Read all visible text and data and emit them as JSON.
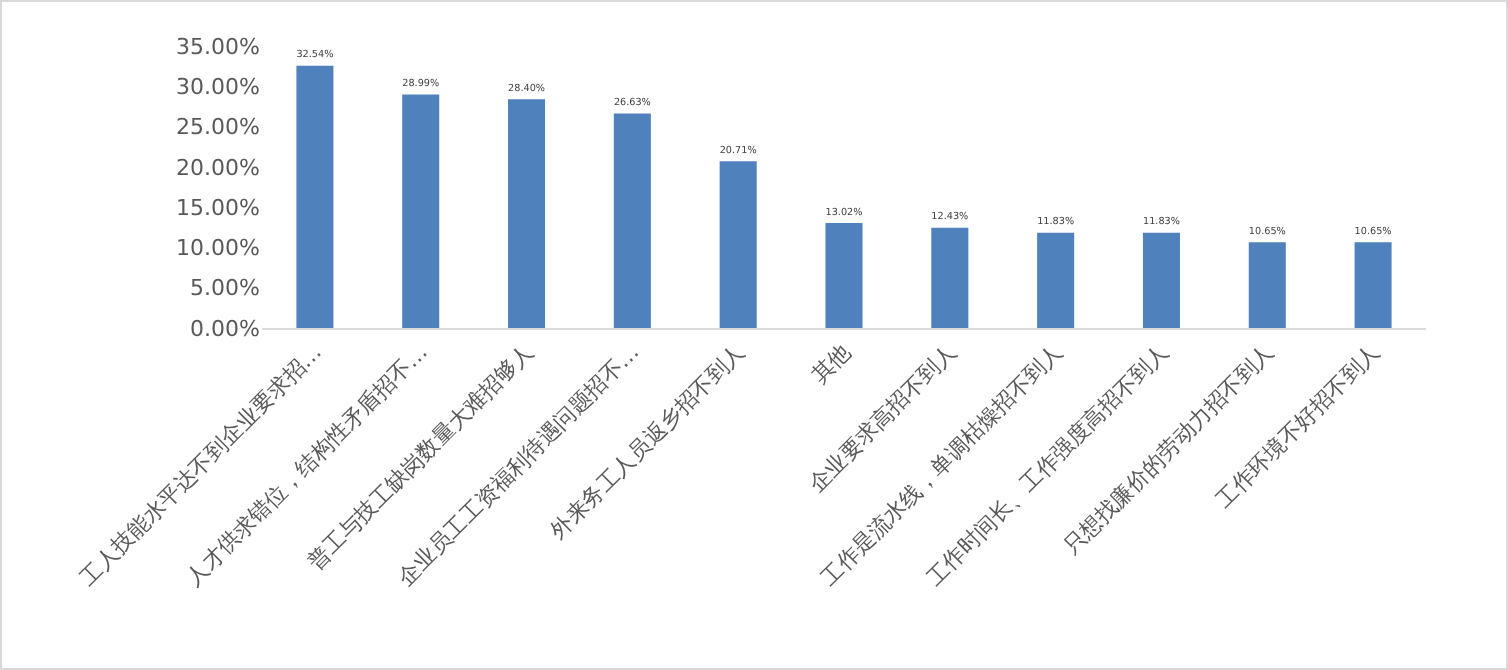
{
  "chart_data": {
    "type": "bar",
    "categories": [
      "工人技能水平达不到企业要求招…",
      "人才供求错位，结构性矛盾招不…",
      "普工与技工缺岗数量大难招够人",
      "企业员工工资福利待遇问题招不…",
      "外来务工人员返乡招不到人",
      "其他",
      "企业要求高招不到人",
      "工作是流水线，单调枯燥招不到人",
      "工作时间长、工作强度高招不到人",
      "只想找廉价的劳动力招不到人",
      "工作环境不好招不到人"
    ],
    "values": [
      32.54,
      28.99,
      28.4,
      26.63,
      20.71,
      13.02,
      12.43,
      11.83,
      11.83,
      10.65,
      10.65
    ],
    "value_labels": [
      "32.54%",
      "28.99%",
      "28.40%",
      "26.63%",
      "20.71%",
      "13.02%",
      "12.43%",
      "11.83%",
      "11.83%",
      "10.65%",
      "10.65%"
    ],
    "color": "#4f81bd",
    "ylim": [
      0,
      35
    ],
    "yticks": [
      {
        "value": 0,
        "label": "0.00%"
      },
      {
        "value": 5,
        "label": "5.00%"
      },
      {
        "value": 10,
        "label": "10.00%"
      },
      {
        "value": 15,
        "label": "15.00%"
      },
      {
        "value": 20,
        "label": "20.00%"
      },
      {
        "value": 25,
        "label": "25.00%"
      },
      {
        "value": 30,
        "label": "30.00%"
      },
      {
        "value": 35,
        "label": "35.00%"
      }
    ],
    "grid": false
  }
}
